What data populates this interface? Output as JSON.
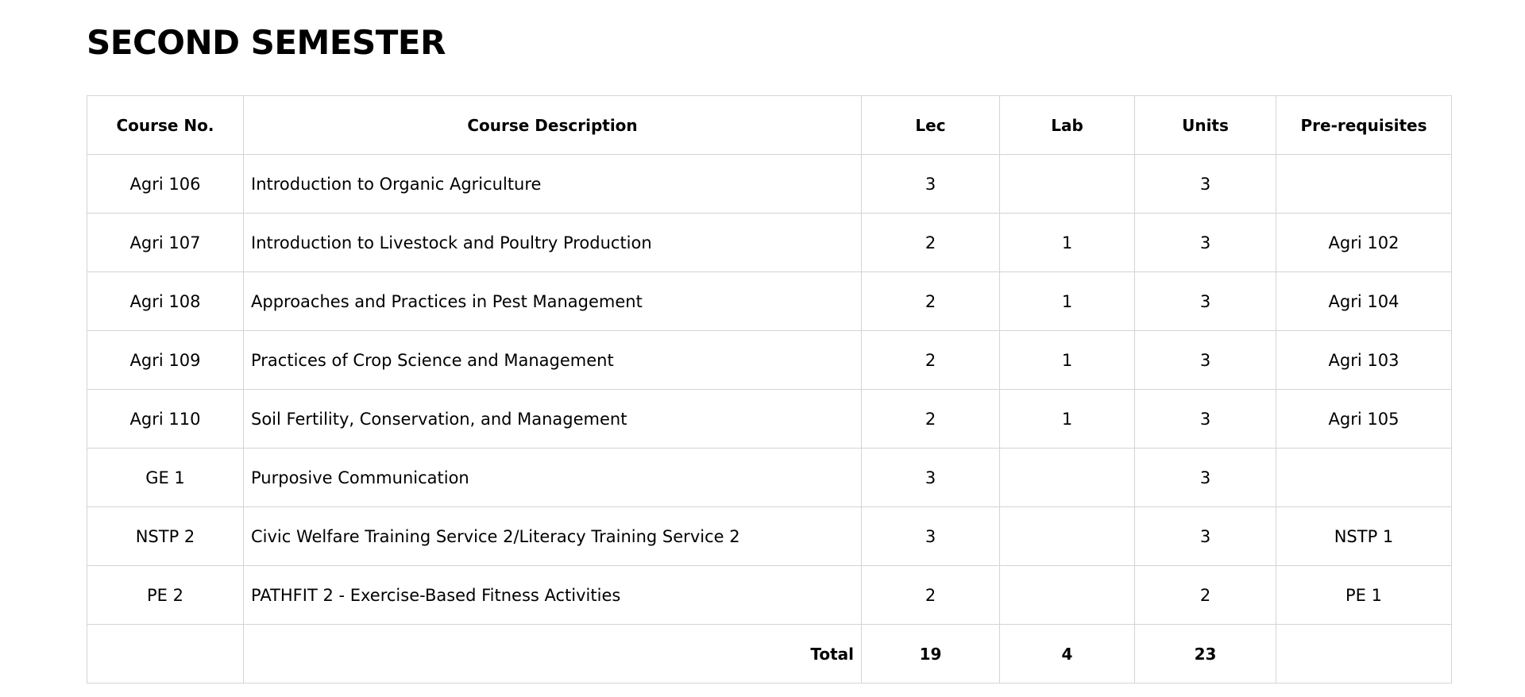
{
  "page_title": "SECOND SEMESTER",
  "columns": {
    "course_no": "Course No.",
    "description": "Course Description",
    "lec": "Lec",
    "lab": "Lab",
    "units": "Units",
    "prereq": "Pre-requisites"
  },
  "rows": [
    {
      "course_no": "Agri 106",
      "description": "Introduction to Organic Agriculture",
      "lec": "3",
      "lab": "",
      "units": "3",
      "prereq": ""
    },
    {
      "course_no": "Agri 107",
      "description": "Introduction to Livestock and Poultry Production",
      "lec": "2",
      "lab": "1",
      "units": "3",
      "prereq": "Agri 102"
    },
    {
      "course_no": "Agri 108",
      "description": "Approaches and Practices in Pest Management",
      "lec": "2",
      "lab": "1",
      "units": "3",
      "prereq": "Agri 104"
    },
    {
      "course_no": "Agri 109",
      "description": "Practices of Crop Science and Management",
      "lec": "2",
      "lab": "1",
      "units": "3",
      "prereq": "Agri 103"
    },
    {
      "course_no": "Agri 110",
      "description": "Soil Fertility, Conservation, and Management",
      "lec": "2",
      "lab": "1",
      "units": "3",
      "prereq": "Agri 105"
    },
    {
      "course_no": "GE 1",
      "description": "Purposive Communication",
      "lec": "3",
      "lab": "",
      "units": "3",
      "prereq": ""
    },
    {
      "course_no": "NSTP 2",
      "description": "Civic Welfare Training Service 2/Literacy Training Service 2",
      "lec": "3",
      "lab": "",
      "units": "3",
      "prereq": "NSTP 1"
    },
    {
      "course_no": "PE 2",
      "description": "PATHFIT 2 - Exercise-Based Fitness Activities",
      "lec": "2",
      "lab": "",
      "units": "2",
      "prereq": "PE 1"
    }
  ],
  "totals": {
    "label": "Total",
    "lec": "19",
    "lab": "4",
    "units": "23"
  }
}
